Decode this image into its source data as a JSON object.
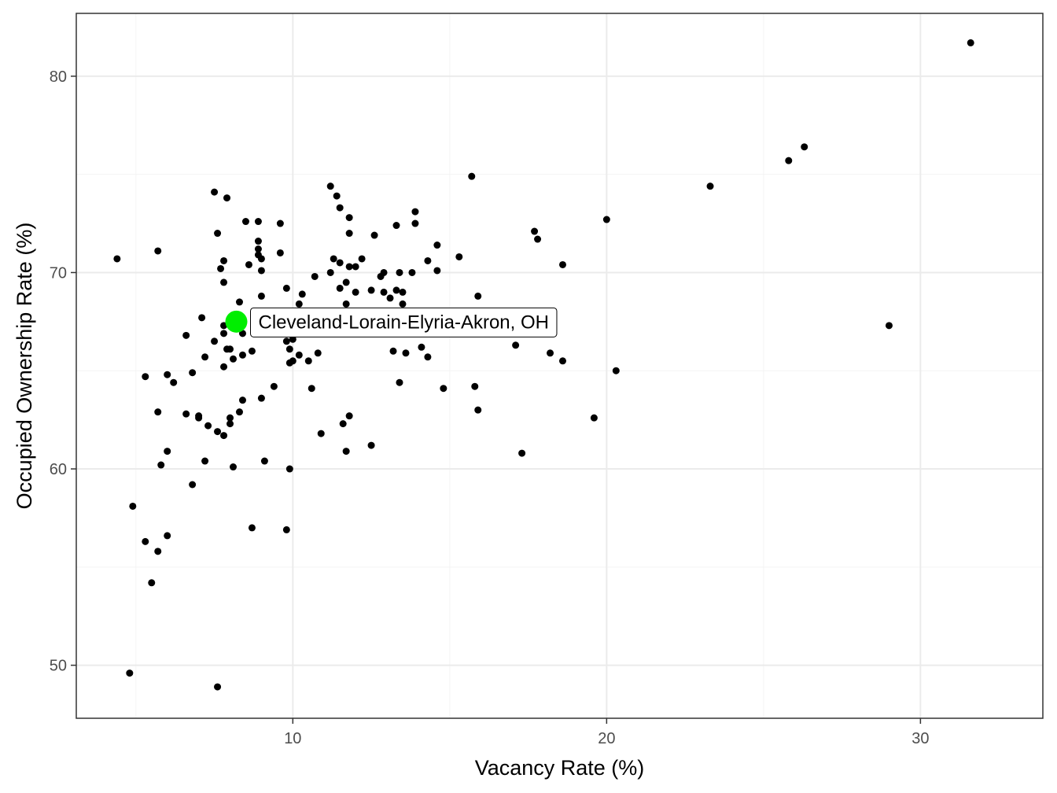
{
  "chart_data": {
    "type": "scatter",
    "title": "",
    "xlabel": "Vacancy Rate (%)",
    "ylabel": "Occupied Ownership Rate (%)",
    "xlim": [
      3.1,
      33.9
    ],
    "ylim": [
      47.3,
      83.2
    ],
    "x_ticks": [
      10,
      20,
      30
    ],
    "y_ticks": [
      50,
      60,
      70,
      80
    ],
    "grid": true,
    "legend": "none",
    "colors": {
      "points": "#000000",
      "highlight": "#00ee00",
      "grid_major": "#ebebeb",
      "grid_minor": "#f4f4f4",
      "panel_border": "#333333"
    },
    "highlight": {
      "x": 8.2,
      "y": 67.5,
      "label": "Cleveland-Lorain-Elyria-Akron, OH"
    },
    "points": [
      [
        31.6,
        81.7
      ],
      [
        26.3,
        76.4
      ],
      [
        25.8,
        75.7
      ],
      [
        23.3,
        74.4
      ],
      [
        29.0,
        67.3
      ],
      [
        20.0,
        72.7
      ],
      [
        20.3,
        65.0
      ],
      [
        19.6,
        62.6
      ],
      [
        18.6,
        70.4
      ],
      [
        18.6,
        65.5
      ],
      [
        18.2,
        65.9
      ],
      [
        17.8,
        71.7
      ],
      [
        17.7,
        72.1
      ],
      [
        17.3,
        60.8
      ],
      [
        17.1,
        66.3
      ],
      [
        15.7,
        74.9
      ],
      [
        15.9,
        68.8
      ],
      [
        15.8,
        64.2
      ],
      [
        15.9,
        63.0
      ],
      [
        15.3,
        70.8
      ],
      [
        14.8,
        64.1
      ],
      [
        14.6,
        71.4
      ],
      [
        14.6,
        70.1
      ],
      [
        14.3,
        70.6
      ],
      [
        14.3,
        65.7
      ],
      [
        14.1,
        66.2
      ],
      [
        13.9,
        73.1
      ],
      [
        13.9,
        72.5
      ],
      [
        13.8,
        70.0
      ],
      [
        13.6,
        65.9
      ],
      [
        13.5,
        69.0
      ],
      [
        13.5,
        68.4
      ],
      [
        13.4,
        70.0
      ],
      [
        13.3,
        72.4
      ],
      [
        13.3,
        69.1
      ],
      [
        13.2,
        66.0
      ],
      [
        13.4,
        64.4
      ],
      [
        13.1,
        68.7
      ],
      [
        12.9,
        70.0
      ],
      [
        12.9,
        69.0
      ],
      [
        12.8,
        69.8
      ],
      [
        12.6,
        71.9
      ],
      [
        12.5,
        69.1
      ],
      [
        12.5,
        61.2
      ],
      [
        12.2,
        70.7
      ],
      [
        12.0,
        70.3
      ],
      [
        12.0,
        69.0
      ],
      [
        11.8,
        72.8
      ],
      [
        11.8,
        72.0
      ],
      [
        11.8,
        70.3
      ],
      [
        11.8,
        62.7
      ],
      [
        11.7,
        69.5
      ],
      [
        11.7,
        68.4
      ],
      [
        11.7,
        60.9
      ],
      [
        11.6,
        62.3
      ],
      [
        11.5,
        73.3
      ],
      [
        11.5,
        70.5
      ],
      [
        11.5,
        69.2
      ],
      [
        11.4,
        73.9
      ],
      [
        11.3,
        70.7
      ],
      [
        11.2,
        74.4
      ],
      [
        11.2,
        70.0
      ],
      [
        10.9,
        61.8
      ],
      [
        10.8,
        65.9
      ],
      [
        10.7,
        69.8
      ],
      [
        10.6,
        64.1
      ],
      [
        10.5,
        65.5
      ],
      [
        10.3,
        68.9
      ],
      [
        10.2,
        68.4
      ],
      [
        10.2,
        65.8
      ],
      [
        10.1,
        67.9
      ],
      [
        10.0,
        66.6
      ],
      [
        10.0,
        65.5
      ],
      [
        9.9,
        67.0
      ],
      [
        9.9,
        66.1
      ],
      [
        9.9,
        65.4
      ],
      [
        9.9,
        60.0
      ],
      [
        9.8,
        66.5
      ],
      [
        9.8,
        69.2
      ],
      [
        9.8,
        56.9
      ],
      [
        9.6,
        72.5
      ],
      [
        9.6,
        71.0
      ],
      [
        9.6,
        68.0
      ],
      [
        9.4,
        64.2
      ],
      [
        9.1,
        60.4
      ],
      [
        9.0,
        70.1
      ],
      [
        9.0,
        68.8
      ],
      [
        8.9,
        72.6
      ],
      [
        8.9,
        71.6
      ],
      [
        8.9,
        71.2
      ],
      [
        8.9,
        70.9
      ],
      [
        9.0,
        70.7
      ],
      [
        9.0,
        63.6
      ],
      [
        8.7,
        66.0
      ],
      [
        8.7,
        57.0
      ],
      [
        8.6,
        70.4
      ],
      [
        8.5,
        72.6
      ],
      [
        8.4,
        66.9
      ],
      [
        8.4,
        65.8
      ],
      [
        8.4,
        63.5
      ],
      [
        8.3,
        68.5
      ],
      [
        8.3,
        62.9
      ],
      [
        8.1,
        65.6
      ],
      [
        8.1,
        60.1
      ],
      [
        8.0,
        66.1
      ],
      [
        8.0,
        62.3
      ],
      [
        8.0,
        62.6
      ],
      [
        7.8,
        70.6
      ],
      [
        7.8,
        69.5
      ],
      [
        7.8,
        67.3
      ],
      [
        7.8,
        66.9
      ],
      [
        7.8,
        65.2
      ],
      [
        7.8,
        61.7
      ],
      [
        7.7,
        70.2
      ],
      [
        7.6,
        61.9
      ],
      [
        7.6,
        72.0
      ],
      [
        7.5,
        74.1
      ],
      [
        7.5,
        66.5
      ],
      [
        7.6,
        48.9
      ],
      [
        7.9,
        73.8
      ],
      [
        7.9,
        66.1
      ],
      [
        7.3,
        62.2
      ],
      [
        7.2,
        65.7
      ],
      [
        7.2,
        60.4
      ],
      [
        7.1,
        67.7
      ],
      [
        7.0,
        62.6
      ],
      [
        7.0,
        62.7
      ],
      [
        6.8,
        64.9
      ],
      [
        6.8,
        59.2
      ],
      [
        6.6,
        66.8
      ],
      [
        6.6,
        62.8
      ],
      [
        6.2,
        64.4
      ],
      [
        6.0,
        64.8
      ],
      [
        6.0,
        60.9
      ],
      [
        6.0,
        56.6
      ],
      [
        5.8,
        60.2
      ],
      [
        5.7,
        71.1
      ],
      [
        5.7,
        62.9
      ],
      [
        5.7,
        55.8
      ],
      [
        5.5,
        54.2
      ],
      [
        5.3,
        64.7
      ],
      [
        5.3,
        56.3
      ],
      [
        4.9,
        58.1
      ],
      [
        4.8,
        49.6
      ],
      [
        4.4,
        70.7
      ]
    ]
  }
}
